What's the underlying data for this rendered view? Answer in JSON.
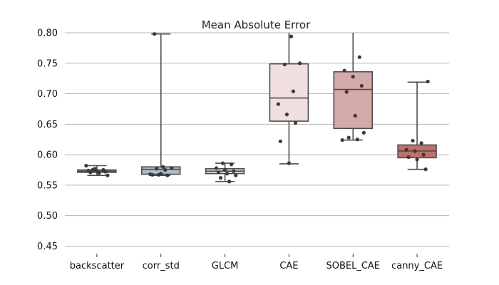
{
  "chart_data": {
    "type": "box",
    "title": "Mean Absolute Error",
    "xlabel": "",
    "ylabel": "",
    "ylim": [
      0.44,
      0.8
    ],
    "yticks": [
      0.45,
      0.5,
      0.55,
      0.6,
      0.65,
      0.7,
      0.75,
      0.8
    ],
    "grid": "y",
    "categories": [
      "backscatter",
      "corr_std",
      "GLCM",
      "CAE",
      "SOBEL_CAE",
      "canny_CAE"
    ],
    "boxes": [
      {
        "name": "backscatter",
        "color": "#bcc3d6",
        "whisker_low": 0.566,
        "q1": 0.571,
        "median": 0.573,
        "q3": 0.575,
        "whisker_high": 0.582,
        "points": [
          0.582,
          0.577,
          0.575,
          0.574,
          0.573,
          0.572,
          0.571,
          0.57,
          0.566,
          0.575
        ]
      },
      {
        "name": "corr_std",
        "color": "#b1bccf",
        "whisker_low": 0.566,
        "q1": 0.568,
        "median": 0.576,
        "q3": 0.58,
        "whisker_high": 0.798,
        "points": [
          0.798,
          0.58,
          0.578,
          0.577,
          0.575,
          0.568,
          0.567,
          0.566,
          0.567,
          0.569
        ]
      },
      {
        "name": "GLCM",
        "color": "#dddbe0",
        "whisker_low": 0.556,
        "q1": 0.569,
        "median": 0.573,
        "q3": 0.577,
        "whisker_high": 0.586,
        "points": [
          0.586,
          0.584,
          0.578,
          0.575,
          0.573,
          0.571,
          0.569,
          0.566,
          0.562,
          0.556
        ]
      },
      {
        "name": "CAE",
        "color": "#f1dfdf",
        "whisker_low": 0.585,
        "q1": 0.655,
        "median": 0.693,
        "q3": 0.749,
        "whisker_high": 0.801,
        "points": [
          0.794,
          0.75,
          0.748,
          0.704,
          0.683,
          0.666,
          0.652,
          0.622,
          0.586
        ]
      },
      {
        "name": "SOBEL_CAE",
        "color": "#d4aaa8",
        "whisker_low": 0.624,
        "q1": 0.643,
        "median": 0.707,
        "q3": 0.736,
        "whisker_high": 0.801,
        "points": [
          0.76,
          0.738,
          0.728,
          0.713,
          0.703,
          0.664,
          0.636,
          0.628,
          0.625,
          0.624
        ]
      },
      {
        "name": "canny_CAE",
        "color": "#c0706e",
        "whisker_low": 0.576,
        "q1": 0.595,
        "median": 0.606,
        "q3": 0.616,
        "whisker_high": 0.719,
        "points": [
          0.72,
          0.623,
          0.619,
          0.608,
          0.606,
          0.6,
          0.596,
          0.592,
          0.576
        ]
      }
    ]
  }
}
